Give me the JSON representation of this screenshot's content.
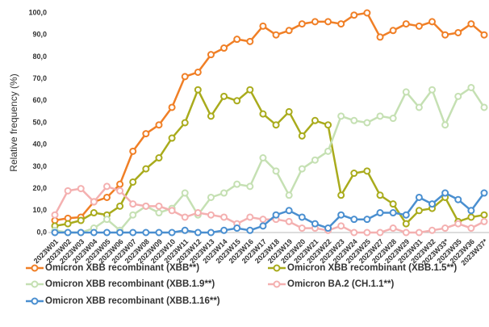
{
  "chart_data": {
    "type": "line",
    "ylabel": "Relative frequency (%)",
    "categories": [
      "2023W01",
      "2023W02",
      "2023W03",
      "2023W04",
      "2023W05",
      "2023W06",
      "2023W07",
      "2023W08",
      "2023W09",
      "2023W10",
      "2023W11",
      "2023W12",
      "2023W13",
      "2023W14",
      "2023W15",
      "2023W16",
      "2023W17",
      "2023W18",
      "2023W19",
      "2023W20",
      "2023W21",
      "2023W22",
      "2023W23",
      "2023W24",
      "2023W25",
      "2023W27",
      "2023W28",
      "2023W29",
      "2023W31",
      "2023W32",
      "2023W33*",
      "2023W35",
      "2023W36",
      "2023W37*"
    ],
    "series": [
      {
        "name": "Omicron XBB recombinant (XBB**)",
        "color": "#f07f26",
        "values": [
          5.5,
          6.5,
          7,
          14,
          16,
          22,
          37,
          45,
          49,
          57,
          71,
          73,
          81,
          84,
          88,
          87,
          94,
          90,
          92,
          95,
          96,
          96,
          95,
          99,
          100,
          89,
          92,
          95,
          94,
          96,
          90,
          91,
          95,
          90
        ]
      },
      {
        "name": "Omicron XBB recombinant (XBB.1.5**)",
        "color": "#a9ab1c",
        "values": [
          3,
          4,
          5.5,
          9,
          8,
          12,
          23,
          29,
          34,
          43,
          50,
          65,
          53,
          62,
          60,
          65,
          54,
          49,
          55,
          44,
          51,
          49,
          17,
          27,
          28,
          17,
          13,
          4,
          10,
          11,
          16,
          5,
          7,
          8
        ]
      },
      {
        "name": "Omicron XBB recombinant (XBB.1.9**)",
        "color": "#c5e0b3",
        "values": [
          1,
          0,
          0,
          2,
          6,
          1,
          8,
          12,
          9,
          11,
          18,
          8,
          16,
          18,
          22,
          21,
          34,
          28,
          17,
          29,
          33,
          37,
          53,
          51,
          50,
          53,
          52,
          64,
          57,
          65,
          49,
          62,
          66,
          57
        ]
      },
      {
        "name": "Omicron BA.2 (CH.1.1**)",
        "color": "#f4b0b0",
        "values": [
          8,
          19,
          20,
          14,
          21,
          19,
          13,
          12,
          12,
          10,
          7,
          9,
          8,
          7,
          4,
          7,
          6,
          6,
          5,
          2,
          2,
          1,
          3,
          0,
          0,
          0,
          2,
          0,
          0,
          1,
          2,
          4,
          2,
          5
        ]
      },
      {
        "name": "Omicron XBB recombinant (XBB.1.16**)",
        "color": "#4a8fd0",
        "values": [
          0,
          0,
          0,
          0,
          0,
          0,
          0,
          0,
          0,
          0,
          1,
          0,
          0,
          1,
          2,
          1,
          3,
          8,
          10,
          7,
          4,
          2,
          8,
          6,
          6,
          9,
          9,
          8,
          16,
          13,
          18,
          15,
          10,
          18
        ]
      }
    ],
    "ylim": [
      0,
      100
    ],
    "yticks": [
      {
        "value": 0,
        "label": "0,0"
      },
      {
        "value": 10,
        "label": "10,0"
      },
      {
        "value": 20,
        "label": "20,0"
      },
      {
        "value": 30,
        "label": "30,0"
      },
      {
        "value": 40,
        "label": "40,0"
      },
      {
        "value": 50,
        "label": "50,0"
      },
      {
        "value": 60,
        "label": "60,0"
      },
      {
        "value": 70,
        "label": "70,0"
      },
      {
        "value": 80,
        "label": "80,0"
      },
      {
        "value": 90,
        "label": "90,0"
      },
      {
        "value": 100,
        "label": "100,0"
      }
    ],
    "grid": false
  }
}
